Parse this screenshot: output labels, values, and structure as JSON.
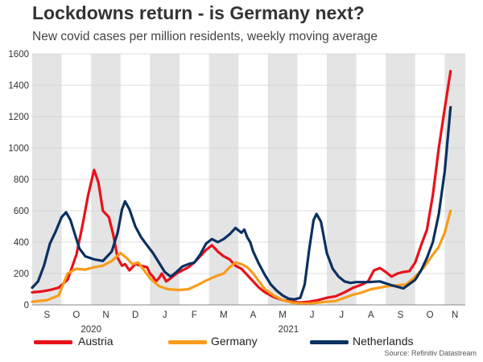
{
  "title": "Lockdowns return - is Germany next?",
  "subtitle": "New covid cases per million residents, weekly moving average",
  "source": "Source: Refinitiv Datastream",
  "chart_data": {
    "type": "line",
    "title": "Lockdowns return - is Germany next?",
    "subtitle": "New covid cases per million residents, weekly moving average",
    "ylabel": "",
    "xlabel": "",
    "ylim": [
      0,
      1600
    ],
    "yticks": [
      0,
      200,
      400,
      600,
      800,
      1000,
      1200,
      1400,
      1600
    ],
    "xlim": [
      0,
      14.7
    ],
    "x_unit": "months since 1 Sep 2020",
    "month_labels": [
      "S",
      "O",
      "N",
      "D",
      "J",
      "F",
      "M",
      "A",
      "M",
      "J",
      "J",
      "A",
      "S",
      "O",
      "N"
    ],
    "year_labels": [
      {
        "label": "2020",
        "x": 2.0
      },
      {
        "label": "2021",
        "x": 8.7
      }
    ],
    "shaded_months": [
      0,
      2,
      4,
      6,
      8,
      10,
      12,
      14
    ],
    "grid": true,
    "legend_position": "bottom",
    "series": [
      {
        "name": "Austria",
        "color": "#e8111a",
        "points": [
          [
            0,
            80
          ],
          [
            0.3,
            85
          ],
          [
            0.6,
            95
          ],
          [
            0.9,
            110
          ],
          [
            1.2,
            160
          ],
          [
            1.5,
            320
          ],
          [
            1.7,
            500
          ],
          [
            1.9,
            700
          ],
          [
            2.1,
            860
          ],
          [
            2.25,
            780
          ],
          [
            2.4,
            600
          ],
          [
            2.6,
            560
          ],
          [
            2.75,
            450
          ],
          [
            2.9,
            300
          ],
          [
            3.05,
            250
          ],
          [
            3.15,
            260
          ],
          [
            3.3,
            220
          ],
          [
            3.5,
            260
          ],
          [
            3.7,
            250
          ],
          [
            3.9,
            240
          ],
          [
            4.0,
            200
          ],
          [
            4.1,
            180
          ],
          [
            4.2,
            150
          ],
          [
            4.3,
            170
          ],
          [
            4.4,
            200
          ],
          [
            4.55,
            150
          ],
          [
            4.7,
            170
          ],
          [
            4.9,
            200
          ],
          [
            5.1,
            220
          ],
          [
            5.3,
            240
          ],
          [
            5.5,
            270
          ],
          [
            5.7,
            310
          ],
          [
            5.9,
            350
          ],
          [
            6.1,
            380
          ],
          [
            6.3,
            340
          ],
          [
            6.5,
            310
          ],
          [
            6.7,
            290
          ],
          [
            6.9,
            250
          ],
          [
            7.1,
            230
          ],
          [
            7.3,
            190
          ],
          [
            7.5,
            150
          ],
          [
            7.7,
            110
          ],
          [
            7.9,
            80
          ],
          [
            8.2,
            50
          ],
          [
            8.5,
            30
          ],
          [
            8.8,
            20
          ],
          [
            9.1,
            15
          ],
          [
            9.4,
            20
          ],
          [
            9.7,
            30
          ],
          [
            10.0,
            45
          ],
          [
            10.3,
            55
          ],
          [
            10.6,
            80
          ],
          [
            10.9,
            110
          ],
          [
            11.2,
            130
          ],
          [
            11.4,
            150
          ],
          [
            11.6,
            220
          ],
          [
            11.8,
            235
          ],
          [
            12.0,
            210
          ],
          [
            12.2,
            180
          ],
          [
            12.4,
            200
          ],
          [
            12.6,
            210
          ],
          [
            12.8,
            215
          ],
          [
            13.0,
            270
          ],
          [
            13.2,
            380
          ],
          [
            13.4,
            480
          ],
          [
            13.6,
            700
          ],
          [
            13.8,
            1000
          ],
          [
            14.0,
            1250
          ],
          [
            14.2,
            1490
          ]
        ]
      },
      {
        "name": "Germany",
        "color": "#f89c1c",
        "points": [
          [
            0,
            20
          ],
          [
            0.5,
            30
          ],
          [
            0.9,
            60
          ],
          [
            1.2,
            200
          ],
          [
            1.5,
            230
          ],
          [
            1.8,
            225
          ],
          [
            2.1,
            240
          ],
          [
            2.4,
            250
          ],
          [
            2.7,
            280
          ],
          [
            3.0,
            330
          ],
          [
            3.2,
            300
          ],
          [
            3.4,
            260
          ],
          [
            3.6,
            270
          ],
          [
            3.8,
            220
          ],
          [
            4.0,
            170
          ],
          [
            4.3,
            120
          ],
          [
            4.6,
            100
          ],
          [
            5.0,
            95
          ],
          [
            5.3,
            100
          ],
          [
            5.6,
            125
          ],
          [
            5.9,
            155
          ],
          [
            6.2,
            180
          ],
          [
            6.5,
            200
          ],
          [
            6.7,
            240
          ],
          [
            6.9,
            270
          ],
          [
            7.1,
            260
          ],
          [
            7.3,
            240
          ],
          [
            7.5,
            200
          ],
          [
            7.7,
            150
          ],
          [
            7.9,
            100
          ],
          [
            8.2,
            60
          ],
          [
            8.5,
            30
          ],
          [
            8.8,
            15
          ],
          [
            9.1,
            8
          ],
          [
            9.4,
            8
          ],
          [
            9.7,
            15
          ],
          [
            10.0,
            20
          ],
          [
            10.3,
            25
          ],
          [
            10.6,
            45
          ],
          [
            10.9,
            65
          ],
          [
            11.2,
            80
          ],
          [
            11.5,
            100
          ],
          [
            11.8,
            110
          ],
          [
            12.1,
            120
          ],
          [
            12.4,
            125
          ],
          [
            12.7,
            130
          ],
          [
            13.0,
            180
          ],
          [
            13.3,
            240
          ],
          [
            13.6,
            320
          ],
          [
            13.8,
            370
          ],
          [
            14.0,
            460
          ],
          [
            14.2,
            600
          ]
        ]
      },
      {
        "name": "Netherlands",
        "color": "#0a3160",
        "points": [
          [
            0,
            110
          ],
          [
            0.2,
            150
          ],
          [
            0.4,
            250
          ],
          [
            0.6,
            390
          ],
          [
            0.8,
            470
          ],
          [
            1.0,
            560
          ],
          [
            1.15,
            590
          ],
          [
            1.3,
            540
          ],
          [
            1.45,
            450
          ],
          [
            1.6,
            360
          ],
          [
            1.8,
            310
          ],
          [
            2.1,
            290
          ],
          [
            2.4,
            280
          ],
          [
            2.7,
            340
          ],
          [
            2.9,
            460
          ],
          [
            3.05,
            610
          ],
          [
            3.15,
            660
          ],
          [
            3.3,
            610
          ],
          [
            3.5,
            500
          ],
          [
            3.7,
            430
          ],
          [
            3.9,
            380
          ],
          [
            4.1,
            330
          ],
          [
            4.3,
            270
          ],
          [
            4.5,
            210
          ],
          [
            4.7,
            180
          ],
          [
            4.9,
            210
          ],
          [
            5.1,
            245
          ],
          [
            5.3,
            260
          ],
          [
            5.5,
            270
          ],
          [
            5.7,
            320
          ],
          [
            5.9,
            390
          ],
          [
            6.1,
            420
          ],
          [
            6.3,
            400
          ],
          [
            6.5,
            420
          ],
          [
            6.7,
            450
          ],
          [
            6.9,
            490
          ],
          [
            7.1,
            460
          ],
          [
            7.2,
            480
          ],
          [
            7.3,
            430
          ],
          [
            7.4,
            400
          ],
          [
            7.5,
            340
          ],
          [
            7.7,
            260
          ],
          [
            7.9,
            190
          ],
          [
            8.1,
            130
          ],
          [
            8.3,
            90
          ],
          [
            8.5,
            60
          ],
          [
            8.7,
            40
          ],
          [
            8.9,
            35
          ],
          [
            9.1,
            45
          ],
          [
            9.25,
            130
          ],
          [
            9.4,
            350
          ],
          [
            9.55,
            540
          ],
          [
            9.65,
            580
          ],
          [
            9.8,
            530
          ],
          [
            10.0,
            330
          ],
          [
            10.2,
            230
          ],
          [
            10.4,
            180
          ],
          [
            10.6,
            150
          ],
          [
            10.8,
            140
          ],
          [
            11.0,
            145
          ],
          [
            11.4,
            145
          ],
          [
            11.8,
            150
          ],
          [
            12.2,
            125
          ],
          [
            12.6,
            105
          ],
          [
            13.0,
            160
          ],
          [
            13.2,
            220
          ],
          [
            13.4,
            300
          ],
          [
            13.6,
            400
          ],
          [
            13.8,
            580
          ],
          [
            14.0,
            850
          ],
          [
            14.2,
            1260
          ]
        ]
      }
    ]
  }
}
